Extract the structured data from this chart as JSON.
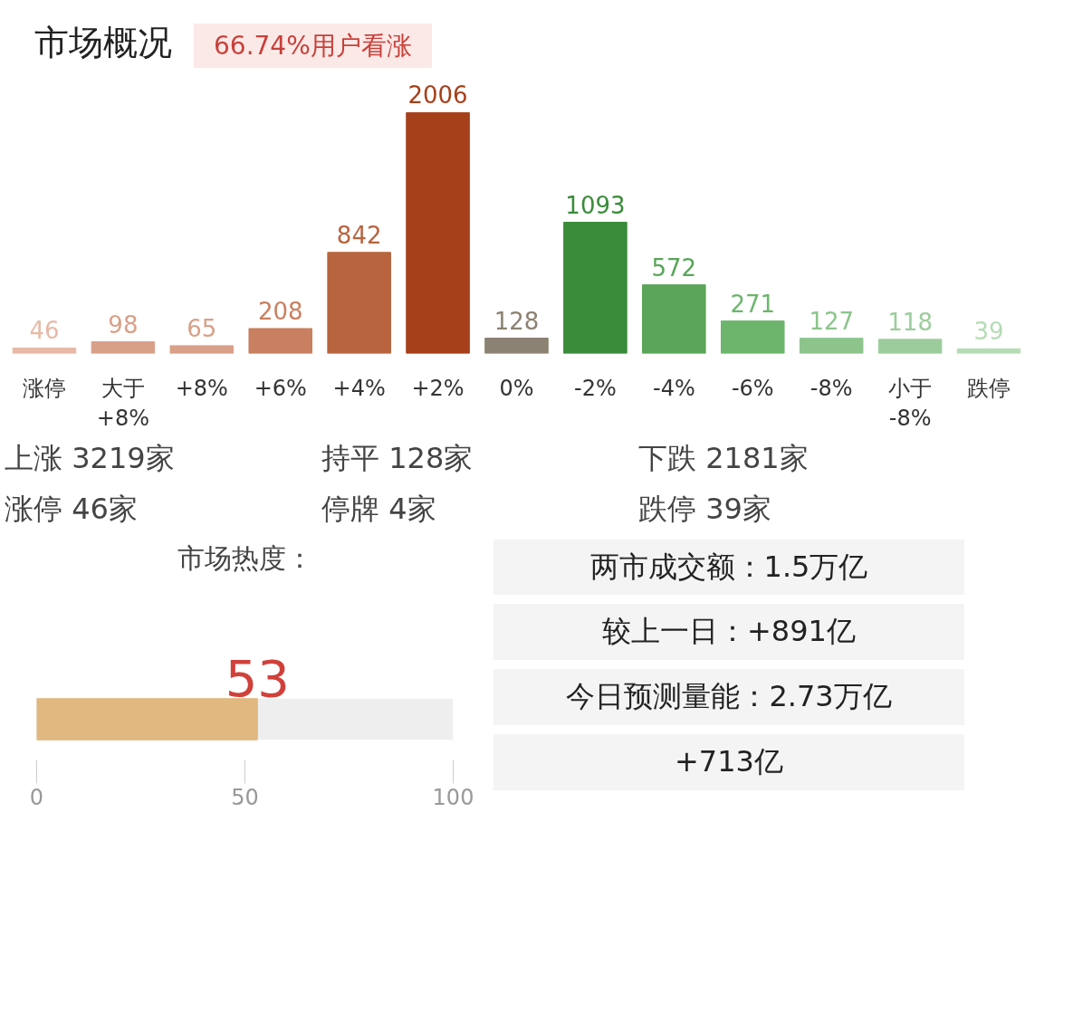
{
  "chart_data": [
    {
      "type": "bar",
      "title": "市场概况",
      "subtitle": "66.74%用户看涨",
      "categories": [
        "涨停",
        "大于\n+8%",
        "+8%",
        "+6%",
        "+4%",
        "+2%",
        "0%",
        "-2%",
        "-4%",
        "-6%",
        "-8%",
        "小于\n-8%",
        "跌停"
      ],
      "values": [
        46,
        98,
        65,
        208,
        842,
        2006,
        128,
        1093,
        572,
        271,
        127,
        118,
        39
      ],
      "colors": [
        "#e8b9a6",
        "#d9a088",
        "#d9a088",
        "#c98060",
        "#b8643f",
        "#a6401a",
        "#8c8273",
        "#3a8c3a",
        "#5aa55a",
        "#6db56d",
        "#8cc48c",
        "#9ccc9c",
        "#b5dcb5"
      ],
      "tick_labels": "x",
      "grid": false,
      "data_labels": true,
      "annotations": [
        "上涨 3219家",
        "持平 128家",
        "下跌 2181家",
        "涨停 46家",
        "停牌 4家",
        "跌停 39家"
      ]
    },
    {
      "type": "bar",
      "orientation": "horizontal",
      "title": "市场热度：",
      "categories": [
        null
      ],
      "values": [
        53
      ],
      "colors": [
        "#e0b880"
      ],
      "xlim": [
        0,
        100
      ],
      "xticks": [
        0,
        50,
        100
      ],
      "tick_labels": "x",
      "grid": false,
      "data_labels": true
    },
    {
      "type": "other",
      "annotations": [
        "两市成交额：1.5万亿",
        "较上一日：+891亿",
        "今日预测量能：2.73万亿",
        "+713亿"
      ]
    }
  ]
}
